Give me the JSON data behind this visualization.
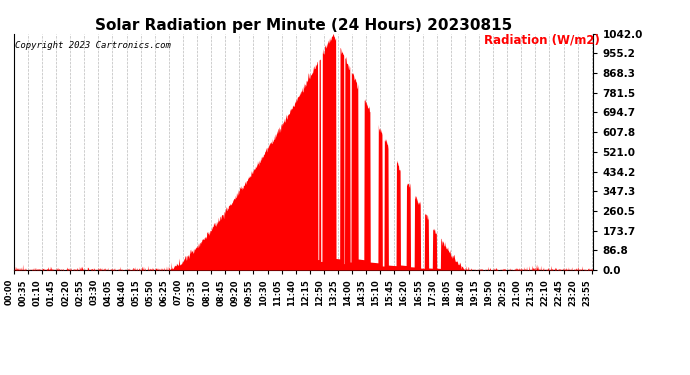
{
  "title": "Solar Radiation per Minute (24 Hours) 20230815",
  "ylabel": "Radiation (W/m2)",
  "copyright": "Copyright 2023 Cartronics.com",
  "yticks": [
    0.0,
    86.8,
    173.7,
    260.5,
    347.3,
    434.2,
    521.0,
    607.8,
    694.7,
    781.5,
    868.3,
    955.2,
    1042.0
  ],
  "ymax": 1042.0,
  "ymin": 0.0,
  "fill_color": "#ff0000",
  "bg_color": "#ffffff",
  "grid_color": "#aaaaaa",
  "title_fontsize": 11,
  "axis_label_color": "#ff0000",
  "copyright_color": "#000000",
  "x_label_rotation": 90,
  "sunrise_minute": 385,
  "sunset_minute": 1120,
  "peak_minute": 793,
  "peak_value": 1042.0,
  "dpi": 100
}
